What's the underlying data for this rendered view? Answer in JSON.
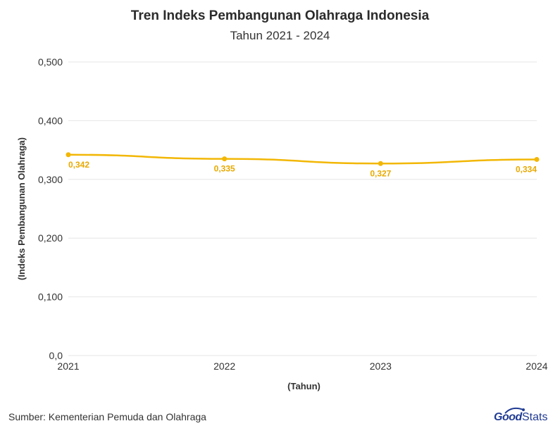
{
  "header": {
    "title": "Tren Indeks Pembangunan Olahraga Indonesia",
    "subtitle": "Tahun 2021 - 2024"
  },
  "footer": {
    "source": "Sumber: Kementerian Pemuda dan Olahraga",
    "logo_part1": "Good",
    "logo_part2": "Stats"
  },
  "colors": {
    "line": "#f2b705",
    "label": "#e8a900",
    "grid": "#e6e6e6",
    "axis_text": "#333333",
    "logo": "#1f3a93"
  },
  "chart_data": {
    "type": "line",
    "title": "Tren Indeks Pembangunan Olahraga Indonesia",
    "subtitle": "Tahun 2021 - 2024",
    "xlabel": "(Tahun)",
    "ylabel": "(Indeks Pembangunan Olahraga)",
    "categories": [
      "2021",
      "2022",
      "2023",
      "2024"
    ],
    "series": [
      {
        "values": [
          0.342,
          0.335,
          0.327,
          0.334
        ],
        "labels": [
          "0,342",
          "0,335",
          "0,327",
          "0,334"
        ]
      }
    ],
    "ylim": [
      0,
      0.5
    ],
    "yticks": [
      0,
      0.1,
      0.2,
      0.3,
      0.4,
      0.5
    ],
    "ytick_labels": [
      "0,0",
      "0,100",
      "0,200",
      "0,300",
      "0,400",
      "0,500"
    ],
    "grid": true,
    "legend": "none"
  }
}
